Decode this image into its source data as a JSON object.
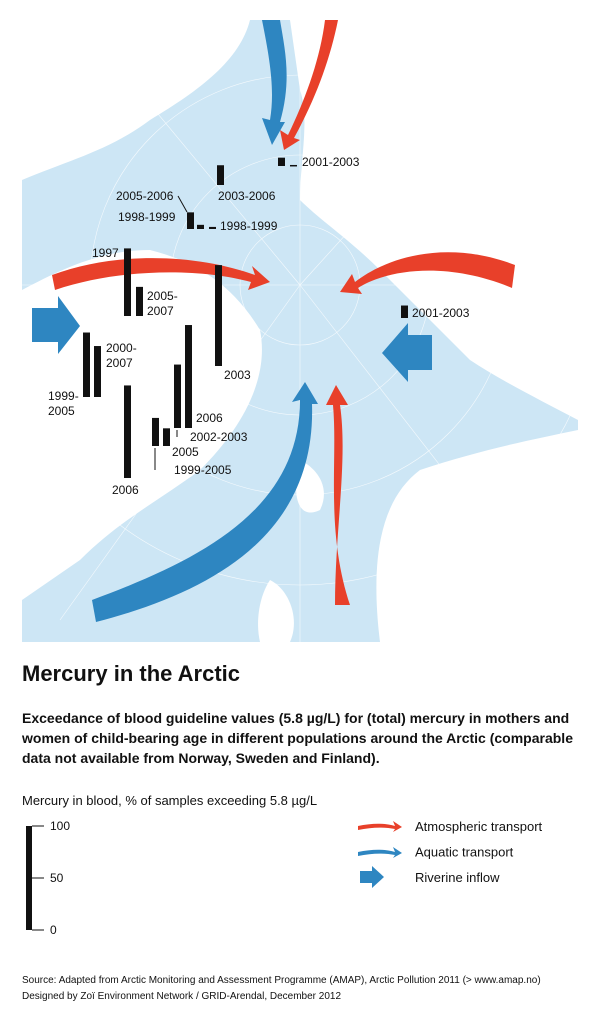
{
  "map": {
    "title": "Mercury in the Arctic",
    "subtitle": "Exceedance of blood guideline values (5.8 µg/L) for (total) mercury in mothers and women of child-bearing age in different populations around the Arctic (comparable data not available from Norway, Sweden and Finland).",
    "scale_label": "Mercury in blood, % of samples exceeding 5.8 µg/L",
    "scale_ticks": [
      0,
      50,
      100
    ],
    "legend": [
      "Atmospheric transport",
      "Aquatic transport",
      "Riverine inflow"
    ],
    "populations": [
      {
        "label": [
          "2001-2003"
        ],
        "values": [
          8,
          1
        ]
      },
      {
        "label": [
          "2003-2006"
        ],
        "values": [
          19
        ]
      },
      {
        "label": [
          "2005-2006"
        ],
        "values": [
          16
        ]
      },
      {
        "label": [
          "1998-1999"
        ],
        "values": [
          4
        ]
      },
      {
        "label": [
          "1998-1999"
        ],
        "values": [
          2
        ]
      },
      {
        "label": [
          "1997"
        ],
        "values": [
          65
        ]
      },
      {
        "label": [
          "2005-",
          "2007"
        ],
        "values": [
          28
        ]
      },
      {
        "label": [
          "2003"
        ],
        "values": [
          97
        ]
      },
      {
        "label": [
          "2000-",
          "2007"
        ],
        "values": [
          49
        ]
      },
      {
        "label": [
          "1999-",
          "2005"
        ],
        "values": [
          62
        ]
      },
      {
        "label": [
          "2006"
        ],
        "values": [
          99
        ]
      },
      {
        "label": [
          "2002-2003"
        ],
        "values": [
          61
        ]
      },
      {
        "label": [
          "2005"
        ],
        "values": [
          17
        ]
      },
      {
        "label": [
          "1999-2005"
        ],
        "values": [
          27
        ]
      },
      {
        "label": [
          "2006"
        ],
        "values": [
          89
        ]
      },
      {
        "label": [
          "2001-2003"
        ],
        "values": [
          12
        ]
      }
    ],
    "source": [
      "Source: Adapted from Arctic Monitoring and Assessment Programme (AMAP), Arctic Pollution 2011 (> www.amap.no)",
      "Designed by Zoï Environment Network / GRID-Arendal, December 2012"
    ]
  }
}
